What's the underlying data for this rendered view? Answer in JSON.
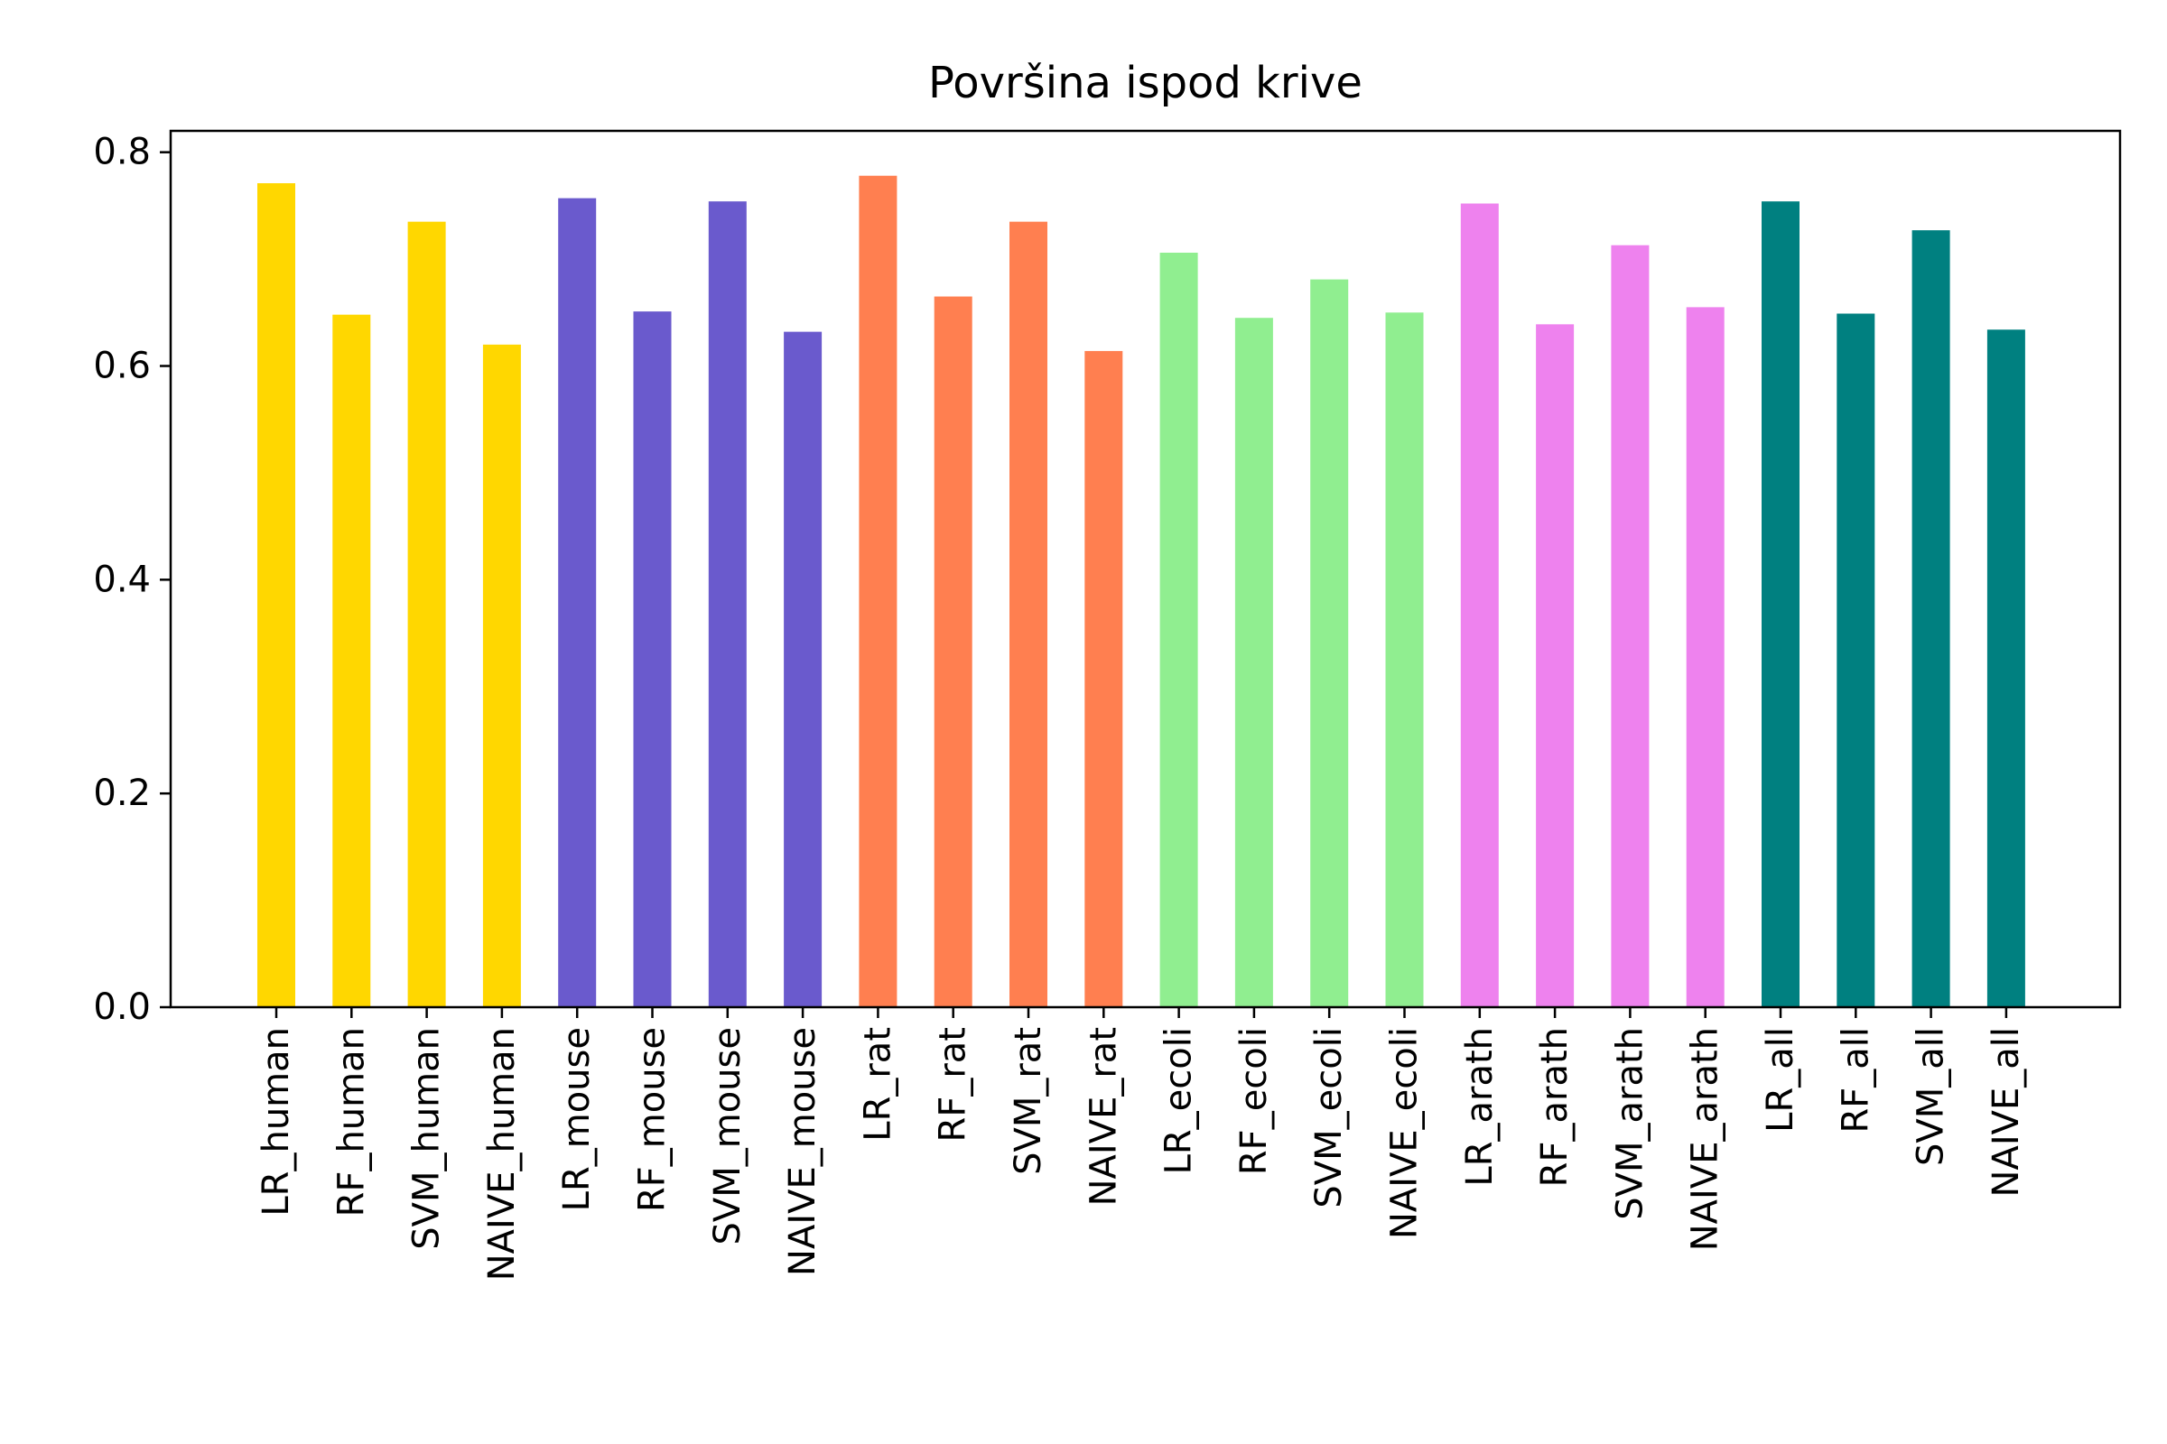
{
  "chart_data": {
    "type": "bar",
    "title": "Površina ispod krive",
    "xlabel": "",
    "ylabel": "",
    "ylim": [
      0,
      0.82
    ],
    "yticks": [
      0.0,
      0.2,
      0.4,
      0.6,
      0.8
    ],
    "ytick_labels": [
      "0.0",
      "0.2",
      "0.4",
      "0.6",
      "0.8"
    ],
    "grid": false,
    "categories": [
      "LR_human",
      "RF_human",
      "SVM_human",
      "NAIVE_human",
      "LR_mouse",
      "RF_mouse",
      "SVM_mouse",
      "NAIVE_mouse",
      "LR_rat",
      "RF_rat",
      "SVM_rat",
      "NAIVE_rat",
      "LR_ecoli",
      "RF_ecoli",
      "SVM_ecoli",
      "NAIVE_ecoli",
      "LR_arath",
      "RF_arath",
      "SVM_arath",
      "NAIVE_arath",
      "LR_all",
      "RF_all",
      "SVM_all",
      "NAIVE_all"
    ],
    "values": [
      0.771,
      0.648,
      0.735,
      0.62,
      0.757,
      0.651,
      0.754,
      0.632,
      0.778,
      0.665,
      0.735,
      0.614,
      0.706,
      0.645,
      0.681,
      0.65,
      0.752,
      0.639,
      0.713,
      0.655,
      0.754,
      0.649,
      0.727,
      0.634
    ],
    "colors": [
      "#FFD700",
      "#FFD700",
      "#FFD700",
      "#FFD700",
      "#6A5ACD",
      "#6A5ACD",
      "#6A5ACD",
      "#6A5ACD",
      "#FF7F50",
      "#FF7F50",
      "#FF7F50",
      "#FF7F50",
      "#90EE90",
      "#90EE90",
      "#90EE90",
      "#90EE90",
      "#EE82EE",
      "#EE82EE",
      "#EE82EE",
      "#EE82EE",
      "#008080",
      "#008080",
      "#008080",
      "#008080"
    ]
  }
}
